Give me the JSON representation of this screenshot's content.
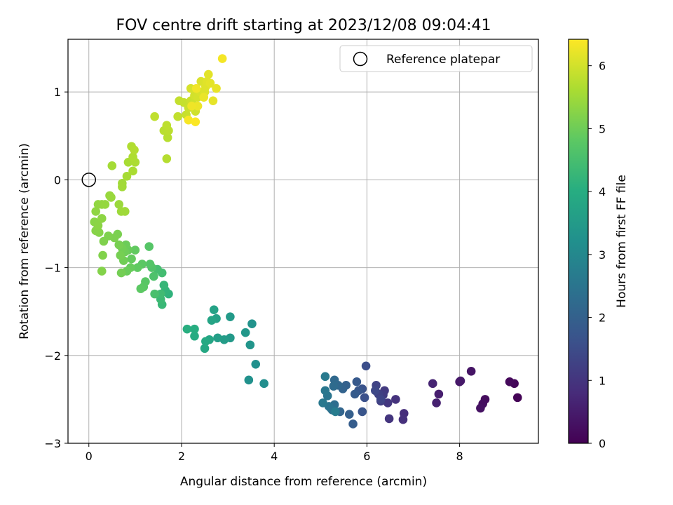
{
  "chart_data": {
    "type": "scatter",
    "title": "FOV centre drift starting at 2023/12/08 09:04:41",
    "xlabel": "Angular distance from reference (arcmin)",
    "ylabel": "Rotation from reference (arcmin)",
    "xlim": [
      -0.45,
      9.7
    ],
    "ylim": [
      -3.0,
      1.6
    ],
    "xticks": [
      0,
      2,
      4,
      6,
      8
    ],
    "yticks": [
      -3,
      -2,
      -1,
      0,
      1
    ],
    "xtick_labels": [
      "0",
      "2",
      "4",
      "6",
      "8"
    ],
    "ytick_labels": [
      "−3",
      "−2",
      "−1",
      "0",
      "1"
    ],
    "grid": true,
    "legend": {
      "placement": "top-right",
      "entries": [
        "Reference platepar"
      ]
    },
    "reference_point": {
      "x": 0,
      "y": 0
    },
    "colorbar": {
      "label": "Hours from first FF file",
      "min": 0,
      "max": 6.42,
      "ticks": [
        0,
        1,
        2,
        3,
        4,
        5,
        6
      ],
      "tick_labels": [
        "0",
        "1",
        "2",
        "3",
        "4",
        "5",
        "6"
      ],
      "colormap": "viridis"
    },
    "points": [
      [
        9.25,
        -2.48,
        0.05
      ],
      [
        9.18,
        -2.32,
        0.1
      ],
      [
        9.08,
        -2.3,
        0.15
      ],
      [
        8.55,
        -2.5,
        0.2
      ],
      [
        8.5,
        -2.55,
        0.25
      ],
      [
        8.45,
        -2.6,
        0.3
      ],
      [
        8.25,
        -2.18,
        0.35
      ],
      [
        8.0,
        -2.3,
        0.4
      ],
      [
        8.02,
        -2.29,
        0.45
      ],
      [
        7.55,
        -2.44,
        0.55
      ],
      [
        7.5,
        -2.54,
        0.6
      ],
      [
        7.42,
        -2.32,
        0.65
      ],
      [
        6.8,
        -2.66,
        0.85
      ],
      [
        6.78,
        -2.73,
        0.9
      ],
      [
        6.62,
        -2.5,
        0.95
      ],
      [
        6.48,
        -2.72,
        1.0
      ],
      [
        6.45,
        -2.54,
        1.05
      ],
      [
        6.38,
        -2.4,
        1.1
      ],
      [
        6.35,
        -2.45,
        1.15
      ],
      [
        6.3,
        -2.52,
        1.2
      ],
      [
        6.25,
        -2.44,
        1.25
      ],
      [
        6.2,
        -2.34,
        1.3
      ],
      [
        6.3,
        -2.5,
        1.35
      ],
      [
        6.18,
        -2.4,
        1.4
      ],
      [
        5.98,
        -2.12,
        1.55
      ],
      [
        5.95,
        -2.48,
        1.6
      ],
      [
        5.9,
        -2.38,
        1.65
      ],
      [
        5.9,
        -2.64,
        1.7
      ],
      [
        5.82,
        -2.4,
        1.75
      ],
      [
        5.78,
        -2.3,
        1.8
      ],
      [
        5.74,
        -2.44,
        1.85
      ],
      [
        5.7,
        -2.78,
        1.9
      ],
      [
        5.62,
        -2.67,
        1.95
      ],
      [
        5.55,
        -2.34,
        2.0
      ],
      [
        5.48,
        -2.38,
        2.05
      ],
      [
        5.42,
        -2.64,
        2.1
      ],
      [
        5.38,
        -2.34,
        2.15
      ],
      [
        5.3,
        -2.28,
        2.2
      ],
      [
        5.28,
        -2.35,
        2.25
      ],
      [
        5.3,
        -2.56,
        2.3
      ],
      [
        5.25,
        -2.62,
        2.35
      ],
      [
        5.22,
        -2.6,
        2.4
      ],
      [
        5.18,
        -2.58,
        2.45
      ],
      [
        5.15,
        -2.46,
        2.5
      ],
      [
        5.1,
        -2.4,
        2.55
      ],
      [
        5.05,
        -2.54,
        2.6
      ],
      [
        5.1,
        -2.24,
        2.65
      ],
      [
        5.32,
        -2.64,
        2.7
      ],
      [
        3.78,
        -2.32,
        3.15
      ],
      [
        3.6,
        -2.1,
        3.2
      ],
      [
        3.45,
        -2.28,
        3.25
      ],
      [
        3.52,
        -1.64,
        3.3
      ],
      [
        3.48,
        -1.88,
        3.35
      ],
      [
        3.38,
        -1.74,
        3.4
      ],
      [
        3.05,
        -1.8,
        3.45
      ],
      [
        3.05,
        -1.56,
        3.5
      ],
      [
        2.92,
        -1.82,
        3.55
      ],
      [
        2.78,
        -1.8,
        3.6
      ],
      [
        2.75,
        -1.58,
        3.65
      ],
      [
        2.7,
        -1.48,
        3.7
      ],
      [
        2.65,
        -1.6,
        3.75
      ],
      [
        2.6,
        -1.82,
        3.8
      ],
      [
        2.5,
        -1.92,
        3.85
      ],
      [
        2.52,
        -1.84,
        3.9
      ],
      [
        2.28,
        -1.78,
        3.95
      ],
      [
        2.28,
        -1.7,
        4.0
      ],
      [
        2.12,
        -1.7,
        4.05
      ],
      [
        1.72,
        -1.3,
        4.15
      ],
      [
        1.65,
        -1.26,
        4.2
      ],
      [
        1.62,
        -1.2,
        4.25
      ],
      [
        1.58,
        -1.42,
        4.3
      ],
      [
        1.55,
        -1.36,
        4.35
      ],
      [
        1.55,
        -1.3,
        4.4
      ],
      [
        1.58,
        -1.06,
        4.45
      ],
      [
        1.48,
        -1.02,
        4.5
      ],
      [
        1.42,
        -1.3,
        4.55
      ],
      [
        1.4,
        -1.1,
        4.6
      ],
      [
        1.36,
        -1.0,
        4.65
      ],
      [
        1.32,
        -0.96,
        4.7
      ],
      [
        1.3,
        -0.76,
        4.72
      ],
      [
        1.22,
        -1.16,
        4.75
      ],
      [
        1.18,
        -1.22,
        4.78
      ],
      [
        1.15,
        -0.96,
        4.8
      ],
      [
        1.12,
        -1.24,
        4.82
      ],
      [
        1.05,
        -1.0,
        4.85
      ],
      [
        1.0,
        -0.8,
        4.87
      ],
      [
        0.92,
        -0.9,
        4.9
      ],
      [
        0.9,
        -1.0,
        4.92
      ],
      [
        0.85,
        -0.8,
        4.94
      ],
      [
        0.82,
        -1.04,
        4.96
      ],
      [
        0.8,
        -0.74,
        4.98
      ],
      [
        0.78,
        -0.82,
        5.0
      ],
      [
        0.75,
        -0.92,
        5.02
      ],
      [
        0.72,
        -0.78,
        5.04
      ],
      [
        0.7,
        -1.06,
        5.06
      ],
      [
        0.68,
        -0.86,
        5.08
      ],
      [
        0.65,
        -0.74,
        5.1
      ],
      [
        0.62,
        -0.62,
        5.12
      ],
      [
        0.55,
        -0.66,
        5.14
      ],
      [
        0.42,
        -0.64,
        5.16
      ],
      [
        0.32,
        -0.7,
        5.18
      ],
      [
        0.3,
        -0.86,
        5.2
      ],
      [
        0.28,
        -1.04,
        5.22
      ],
      [
        0.22,
        -0.6,
        5.24
      ],
      [
        0.15,
        -0.58,
        5.26
      ],
      [
        0.12,
        -0.48,
        5.28
      ],
      [
        0.2,
        -0.52,
        5.3
      ],
      [
        0.28,
        -0.44,
        5.32
      ],
      [
        0.15,
        -0.36,
        5.34
      ],
      [
        0.2,
        -0.28,
        5.36
      ],
      [
        0.28,
        -0.28,
        5.38
      ],
      [
        0.35,
        -0.28,
        5.4
      ],
      [
        0.45,
        -0.18,
        5.42
      ],
      [
        0.48,
        -0.2,
        5.44
      ],
      [
        0.65,
        -0.28,
        5.46
      ],
      [
        0.7,
        -0.36,
        5.48
      ],
      [
        0.78,
        -0.36,
        5.5
      ],
      [
        0.72,
        -0.04,
        5.52
      ],
      [
        0.72,
        -0.08,
        5.54
      ],
      [
        0.5,
        0.16,
        5.56
      ],
      [
        0.82,
        0.04,
        5.58
      ],
      [
        0.85,
        0.2,
        5.6
      ],
      [
        0.95,
        0.1,
        5.62
      ],
      [
        1.0,
        0.2,
        5.64
      ],
      [
        0.95,
        0.26,
        5.66
      ],
      [
        0.92,
        0.38,
        5.68
      ],
      [
        0.98,
        0.34,
        5.7
      ],
      [
        1.68,
        0.24,
        5.72
      ],
      [
        1.7,
        0.48,
        5.74
      ],
      [
        1.62,
        0.56,
        5.76
      ],
      [
        1.72,
        0.56,
        5.78
      ],
      [
        1.68,
        0.62,
        5.8
      ],
      [
        1.42,
        0.72,
        5.82
      ],
      [
        1.92,
        0.72,
        5.84
      ],
      [
        1.95,
        0.9,
        5.86
      ],
      [
        2.05,
        0.88,
        5.88
      ],
      [
        2.1,
        0.74,
        5.9
      ],
      [
        2.15,
        0.82,
        5.92
      ],
      [
        2.2,
        0.9,
        5.94
      ],
      [
        2.25,
        0.86,
        5.96
      ],
      [
        2.3,
        0.78,
        5.98
      ],
      [
        2.28,
        0.96,
        6.0
      ],
      [
        2.35,
        0.94,
        6.02
      ],
      [
        2.2,
        1.04,
        6.04
      ],
      [
        2.4,
        1.0,
        6.06
      ],
      [
        2.42,
        1.12,
        6.08
      ],
      [
        2.5,
        1.0,
        6.1
      ],
      [
        2.52,
        1.06,
        6.12
      ],
      [
        2.55,
        1.12,
        6.14
      ],
      [
        2.58,
        1.2,
        6.16
      ],
      [
        2.62,
        1.1,
        6.18
      ],
      [
        2.68,
        0.9,
        6.2
      ],
      [
        2.75,
        1.04,
        6.22
      ],
      [
        2.48,
        0.94,
        6.24
      ],
      [
        2.35,
        0.84,
        6.26
      ],
      [
        2.22,
        0.84,
        6.28
      ],
      [
        2.32,
        1.04,
        6.3
      ],
      [
        2.88,
        1.38,
        6.33
      ],
      [
        2.15,
        0.68,
        6.36
      ],
      [
        2.3,
        0.66,
        6.4
      ]
    ]
  }
}
